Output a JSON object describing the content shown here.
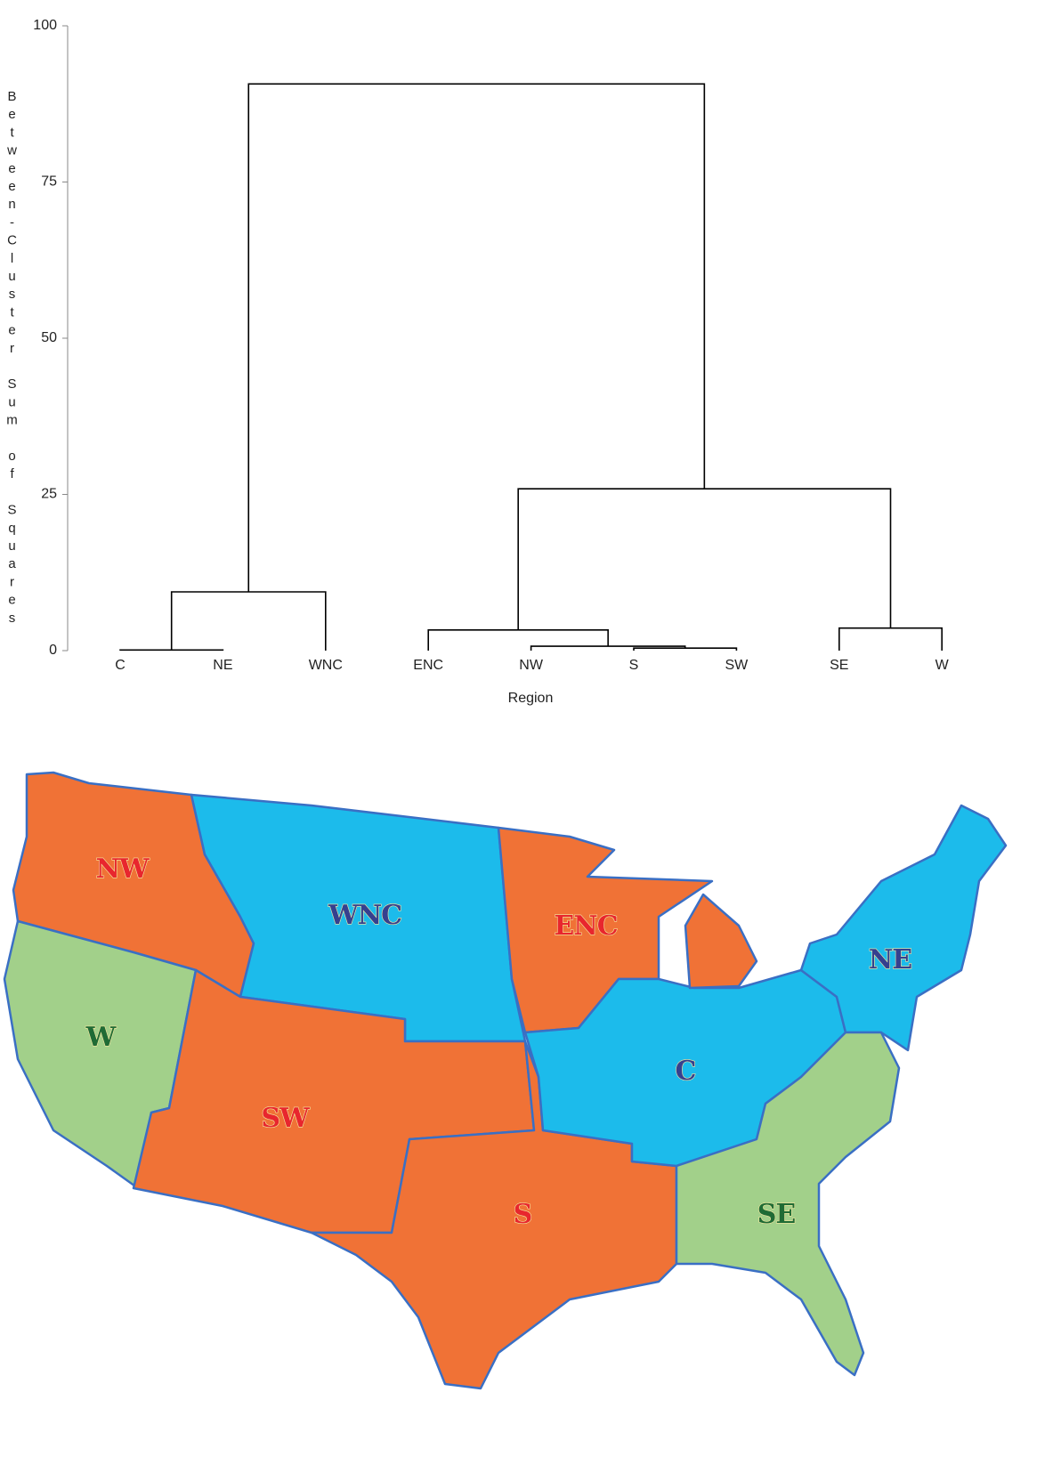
{
  "chart_data": {
    "type": "dendrogram",
    "y_label": "Between-Cluster Sum of Squares",
    "x_label": "Region",
    "ylim": [
      0,
      100
    ],
    "yticks": [
      0,
      25,
      50,
      75,
      100
    ],
    "tree": {
      "height": 90.7,
      "children": [
        {
          "height": 9.4,
          "children": [
            {
              "height": 0.1,
              "children": [
                "C",
                "NE"
              ]
            },
            "WNC"
          ]
        },
        {
          "height": 25.9,
          "children": [
            {
              "height": 3.3,
              "children": [
                "ENC",
                {
                  "height": 0.7,
                  "children": [
                    "NW",
                    {
                      "height": 0.4,
                      "children": [
                        "S",
                        "SW"
                      ]
                    }
                  ]
                }
              ]
            },
            {
              "height": 3.6,
              "children": [
                "SE",
                "W"
              ]
            }
          ]
        }
      ]
    }
  },
  "map": {
    "regions": [
      {
        "label": "NW",
        "color": "#f07236",
        "text_color": "#e8262e"
      },
      {
        "label": "W",
        "color": "#a2d08a",
        "text_color": "#1f6b35"
      },
      {
        "label": "WNC",
        "color": "#1cbbeb",
        "text_color": "#35408f"
      },
      {
        "label": "ENC",
        "color": "#f07236",
        "text_color": "#e8262e"
      },
      {
        "label": "SW",
        "color": "#f07236",
        "text_color": "#e8262e"
      },
      {
        "label": "S",
        "color": "#f07236",
        "text_color": "#e8262e"
      },
      {
        "label": "C",
        "color": "#1cbbeb",
        "text_color": "#35408f"
      },
      {
        "label": "NE",
        "color": "#1cbbeb",
        "text_color": "#35408f"
      },
      {
        "label": "SE",
        "color": "#a2d08a",
        "text_color": "#1f6b35"
      }
    ]
  }
}
